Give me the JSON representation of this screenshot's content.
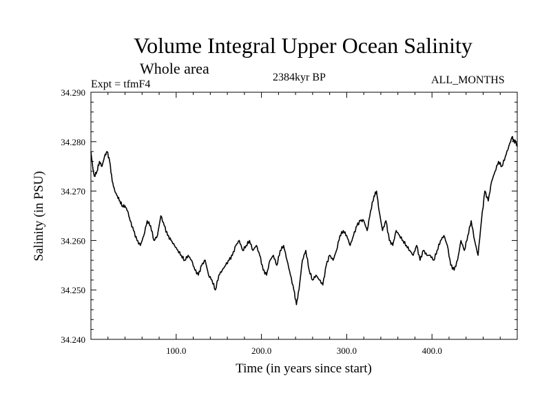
{
  "header": {
    "title": "Volume Integral Upper Ocean Salinity",
    "subtitle": "Whole area",
    "experiment": "Expt = tfmF4",
    "date": "2384kyr BP",
    "months": "ALL_MONTHS"
  },
  "chart_data": {
    "type": "line",
    "title": "Volume Integral Upper Ocean Salinity",
    "xlabel": "Time (in years since start)",
    "ylabel": "Salinity (in PSU)",
    "xlim": [
      0,
      500
    ],
    "ylim": [
      34.24,
      34.29
    ],
    "x_ticks": [
      100,
      200,
      300,
      400
    ],
    "x_tick_labels": [
      "100.0",
      "200.0",
      "300.0",
      "400.0"
    ],
    "y_ticks": [
      34.24,
      34.25,
      34.26,
      34.27,
      34.28,
      34.29
    ],
    "y_tick_labels": [
      "34.240",
      "34.250",
      "34.260",
      "34.270",
      "34.280",
      "34.290"
    ],
    "grid": false,
    "series": [
      {
        "name": "Salinity",
        "x": [
          0,
          2,
          4,
          7,
          10,
          13,
          16,
          19,
          22,
          25,
          28,
          31,
          34,
          37,
          40,
          43,
          46,
          50,
          54,
          58,
          62,
          66,
          70,
          74,
          78,
          82,
          86,
          90,
          94,
          98,
          102,
          106,
          110,
          114,
          118,
          122,
          126,
          130,
          134,
          138,
          142,
          146,
          150,
          154,
          158,
          162,
          166,
          170,
          174,
          178,
          182,
          186,
          190,
          194,
          198,
          202,
          206,
          210,
          214,
          218,
          222,
          226,
          230,
          234,
          238,
          241,
          244,
          248,
          252,
          256,
          260,
          264,
          268,
          272,
          276,
          280,
          284,
          288,
          292,
          296,
          300,
          304,
          308,
          312,
          316,
          320,
          324,
          328,
          332,
          335,
          338,
          342,
          346,
          350,
          354,
          358,
          362,
          366,
          370,
          374,
          378,
          382,
          386,
          390,
          394,
          398,
          402,
          406,
          410,
          414,
          418,
          422,
          426,
          430,
          434,
          438,
          442,
          446,
          450,
          454,
          458,
          462,
          466,
          470,
          474,
          478,
          482,
          486,
          490,
          494,
          496,
          498,
          500
        ],
        "values": [
          34.278,
          34.275,
          34.273,
          34.274,
          34.276,
          34.275,
          34.277,
          34.278,
          34.276,
          34.272,
          34.27,
          34.269,
          34.268,
          34.267,
          34.267,
          34.266,
          34.264,
          34.262,
          34.26,
          34.259,
          34.261,
          34.264,
          34.263,
          34.26,
          34.261,
          34.265,
          34.263,
          34.261,
          34.26,
          34.259,
          34.258,
          34.257,
          34.256,
          34.257,
          34.256,
          34.254,
          34.253,
          34.255,
          34.256,
          34.253,
          34.252,
          34.25,
          34.253,
          34.254,
          34.255,
          34.256,
          34.257,
          34.259,
          34.26,
          34.258,
          34.259,
          34.26,
          34.258,
          34.259,
          34.257,
          34.254,
          34.253,
          34.256,
          34.257,
          34.255,
          34.258,
          34.259,
          34.256,
          34.253,
          34.25,
          34.247,
          34.25,
          34.256,
          34.258,
          34.254,
          34.252,
          34.253,
          34.252,
          34.251,
          34.255,
          34.257,
          34.256,
          34.258,
          34.261,
          34.262,
          34.261,
          34.259,
          34.261,
          34.263,
          34.264,
          34.264,
          34.262,
          34.266,
          34.269,
          34.27,
          34.266,
          34.262,
          34.264,
          34.26,
          34.259,
          34.262,
          34.261,
          34.26,
          34.259,
          34.258,
          34.257,
          34.259,
          34.256,
          34.258,
          34.257,
          34.257,
          34.256,
          34.258,
          34.26,
          34.261,
          34.259,
          34.255,
          34.254,
          34.256,
          34.26,
          34.258,
          34.261,
          34.264,
          34.26,
          34.257,
          34.264,
          34.27,
          34.268,
          34.272,
          34.274,
          34.276,
          34.275,
          34.277,
          34.279,
          34.281,
          34.28,
          34.28,
          34.279
        ]
      }
    ]
  }
}
